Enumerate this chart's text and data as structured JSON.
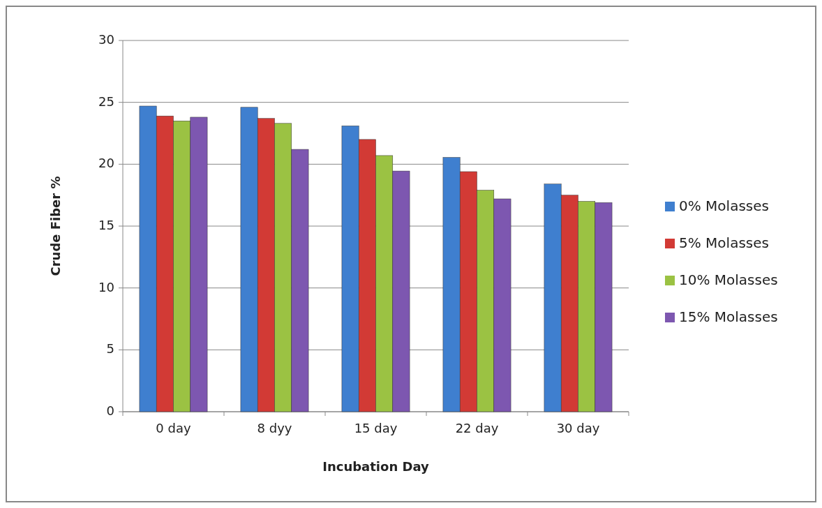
{
  "chart_data": {
    "type": "bar",
    "xlabel": "Incubation Day",
    "ylabel": "Crude Fiber %",
    "categories": [
      "0 day",
      "8 dyy",
      "15 day",
      "22 day",
      "30 day"
    ],
    "series": [
      {
        "name": "0% Molasses",
        "color": "#3f7fcf",
        "values": [
          24.7,
          24.6,
          23.1,
          20.55,
          18.4
        ]
      },
      {
        "name": "5% Molasses",
        "color": "#d23a35",
        "values": [
          23.9,
          23.7,
          22.0,
          19.4,
          17.5
        ]
      },
      {
        "name": "10% Molasses",
        "color": "#9bc243",
        "values": [
          23.5,
          23.3,
          20.7,
          17.9,
          17.0
        ]
      },
      {
        "name": "15% Molasses",
        "color": "#7d57b0",
        "values": [
          23.8,
          21.2,
          19.45,
          17.2,
          16.9
        ]
      }
    ],
    "ylim": [
      0,
      30
    ],
    "yticks": [
      0,
      5,
      10,
      15,
      20,
      25,
      30
    ],
    "grid": "y",
    "legend": "right"
  }
}
